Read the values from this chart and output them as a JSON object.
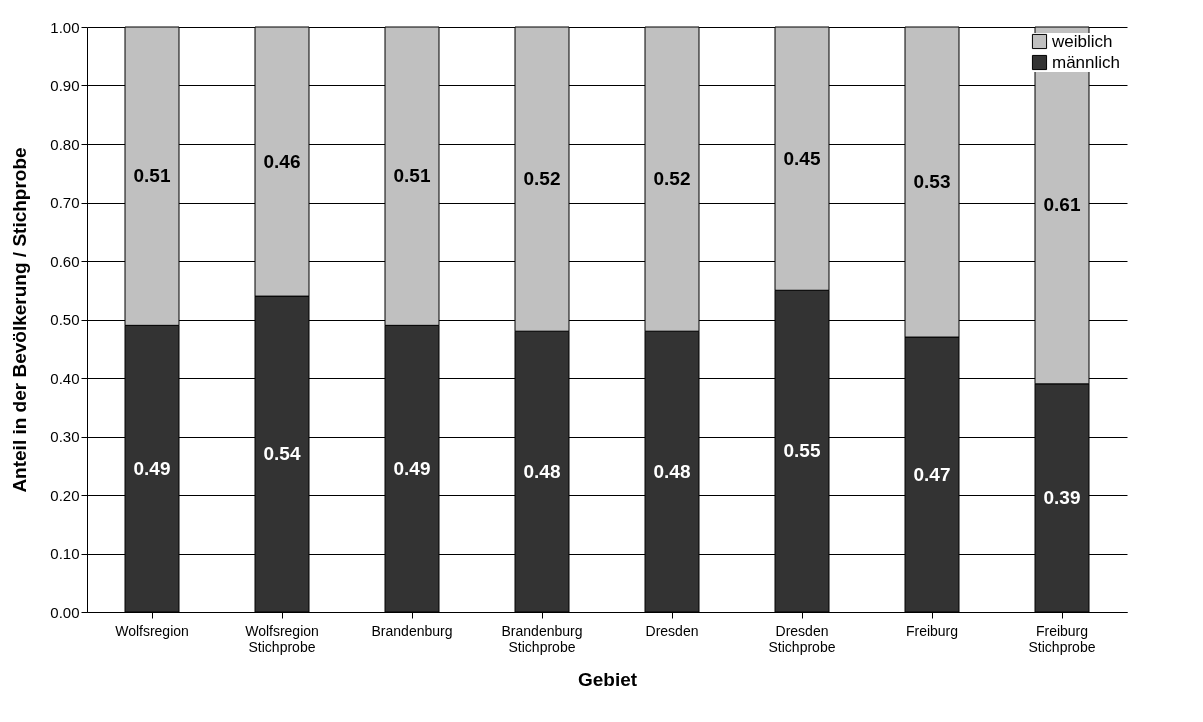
{
  "chart_data": {
    "type": "bar",
    "stacked": true,
    "xlabel": "Gebiet",
    "ylabel": "Anteil in der Bevölkerung / Stichprobe",
    "categories": [
      "Wolfsregion",
      "Wolfsregion Stichprobe",
      "Brandenburg",
      "Brandenburg Stichprobe",
      "Dresden",
      "Dresden Stichprobe",
      "Freiburg",
      "Freiburg Stichprobe"
    ],
    "series": [
      {
        "name": "männlich",
        "color": "#333333",
        "values": [
          0.49,
          0.54,
          0.49,
          0.48,
          0.48,
          0.55,
          0.47,
          0.39
        ]
      },
      {
        "name": "weiblich",
        "color": "#c0c0c0",
        "values": [
          0.51,
          0.46,
          0.51,
          0.52,
          0.52,
          0.45,
          0.53,
          0.61
        ]
      }
    ],
    "ylim": [
      0,
      1
    ],
    "yticks": [
      {
        "value": 0,
        "label": "0.00"
      },
      {
        "value": 0.1,
        "label": "0.10"
      },
      {
        "value": 0.2,
        "label": "0.20"
      },
      {
        "value": 0.3,
        "label": "0.30"
      },
      {
        "value": 0.4,
        "label": "0.40"
      },
      {
        "value": 0.5,
        "label": "0.50"
      },
      {
        "value": 0.6,
        "label": "0.60"
      },
      {
        "value": 0.7,
        "label": "0.70"
      },
      {
        "value": 0.8,
        "label": "0.80"
      },
      {
        "value": 0.9,
        "label": "0.90"
      },
      {
        "value": 1,
        "label": "1.00"
      }
    ],
    "grid": "y",
    "legend": "top right",
    "data_labels": true
  }
}
